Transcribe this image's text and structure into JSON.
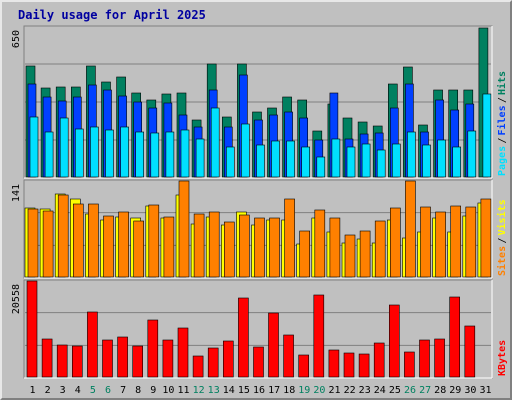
{
  "title": "Daily usage for April 2025",
  "colors": {
    "background": "#c0c0c0",
    "hits": "#008060",
    "files": "#0040ff",
    "pages": "#00e0ff",
    "visits": "#ff8000",
    "sites": "#ffff00",
    "kbytes": "#ff0000",
    "weekend_label": "#008060",
    "weekday_label": "#000000"
  },
  "chart_data": [
    {
      "type": "bar",
      "panel": "requests",
      "ymax_label": "650",
      "ylim": [
        0,
        650
      ],
      "legend": [
        {
          "name": "Pages",
          "color": "#00e0ff"
        },
        {
          "name": "Files",
          "color": "#0040ff"
        },
        {
          "name": "Hits",
          "color": "#008060"
        }
      ],
      "categories": [
        "1",
        "2",
        "3",
        "4",
        "5",
        "6",
        "7",
        "8",
        "9",
        "10",
        "11",
        "12",
        "13",
        "14",
        "15",
        "16",
        "17",
        "18",
        "19",
        "20",
        "21",
        "22",
        "23",
        "24",
        "25",
        "26",
        "27",
        "28",
        "29",
        "30",
        "31"
      ],
      "series": [
        {
          "name": "Hits",
          "values": [
            480,
            385,
            390,
            390,
            480,
            410,
            435,
            365,
            335,
            360,
            365,
            245,
            490,
            260,
            490,
            280,
            300,
            345,
            335,
            200,
            315,
            255,
            240,
            220,
            405,
            475,
            225,
            375,
            375,
            375,
            645
          ]
        },
        {
          "name": "Files",
          "values": [
            405,
            345,
            330,
            345,
            400,
            375,
            350,
            325,
            300,
            320,
            270,
            215,
            375,
            215,
            440,
            245,
            270,
            280,
            255,
            160,
            365,
            165,
            185,
            190,
            300,
            405,
            195,
            335,
            290,
            315,
            0
          ]
        },
        {
          "name": "Pages",
          "values": [
            260,
            195,
            255,
            210,
            215,
            205,
            215,
            195,
            190,
            195,
            205,
            165,
            300,
            130,
            230,
            140,
            155,
            155,
            130,
            85,
            165,
            130,
            145,
            115,
            145,
            195,
            140,
            160,
            130,
            200,
            360
          ]
        }
      ]
    },
    {
      "type": "bar",
      "panel": "visitors",
      "ymax_label": "141",
      "ylim": [
        0,
        141
      ],
      "legend": [
        {
          "name": "Sites",
          "color": "#ff8000"
        },
        {
          "name": "Visits",
          "color": "#ffff00"
        }
      ],
      "categories": [
        "1",
        "2",
        "3",
        "4",
        "5",
        "6",
        "7",
        "8",
        "9",
        "10",
        "11",
        "12",
        "13",
        "14",
        "15",
        "16",
        "17",
        "18",
        "19",
        "20",
        "21",
        "22",
        "23",
        "24",
        "25",
        "26",
        "27",
        "28",
        "29",
        "30",
        "31"
      ],
      "series": [
        {
          "name": "Visits",
          "values": [
            102,
            100,
            122,
            115,
            93,
            83,
            88,
            86,
            104,
            86,
            121,
            78,
            88,
            76,
            96,
            76,
            83,
            83,
            48,
            86,
            66,
            50,
            56,
            50,
            83,
            58,
            66,
            86,
            66,
            90,
            108
          ]
        },
        {
          "name": "Sites",
          "values": [
            100,
            97,
            121,
            107,
            107,
            89,
            96,
            82,
            106,
            88,
            141,
            92,
            96,
            81,
            91,
            87,
            87,
            115,
            68,
            98,
            86,
            61,
            68,
            82,
            101,
            141,
            103,
            96,
            104,
            103,
            114
          ]
        }
      ]
    },
    {
      "type": "bar",
      "panel": "kbytes",
      "ymax_label": "20558",
      "ylim": [
        0,
        20558
      ],
      "legend": [
        {
          "name": "KBytes",
          "color": "#ff0000"
        }
      ],
      "categories": [
        "1",
        "2",
        "3",
        "4",
        "5",
        "6",
        "7",
        "8",
        "9",
        "10",
        "11",
        "12",
        "13",
        "14",
        "15",
        "16",
        "17",
        "18",
        "19",
        "20",
        "21",
        "22",
        "23",
        "24",
        "25",
        "26",
        "27",
        "28",
        "29",
        "30",
        "31"
      ],
      "series": [
        {
          "name": "KBytes",
          "values": [
            20558,
            8100,
            6900,
            6600,
            13900,
            7900,
            8600,
            6700,
            12200,
            7900,
            10600,
            4400,
            6300,
            7700,
            16900,
            6400,
            13600,
            9100,
            4800,
            17500,
            5800,
            5200,
            4900,
            7300,
            15500,
            5300,
            7900,
            8200,
            17100,
            11000,
            0
          ]
        }
      ]
    }
  ],
  "x_ticks": {
    "labels": [
      "1",
      "2",
      "3",
      "4",
      "5",
      "6",
      "7",
      "8",
      "9",
      "10",
      "11",
      "12",
      "13",
      "14",
      "15",
      "16",
      "17",
      "18",
      "19",
      "20",
      "21",
      "22",
      "23",
      "24",
      "25",
      "26",
      "27",
      "28",
      "29",
      "30",
      "31"
    ],
    "weekend": [
      false,
      false,
      false,
      false,
      true,
      true,
      false,
      false,
      false,
      false,
      false,
      true,
      true,
      false,
      false,
      false,
      false,
      false,
      true,
      true,
      false,
      false,
      false,
      false,
      false,
      true,
      true,
      false,
      false,
      false,
      false
    ]
  }
}
